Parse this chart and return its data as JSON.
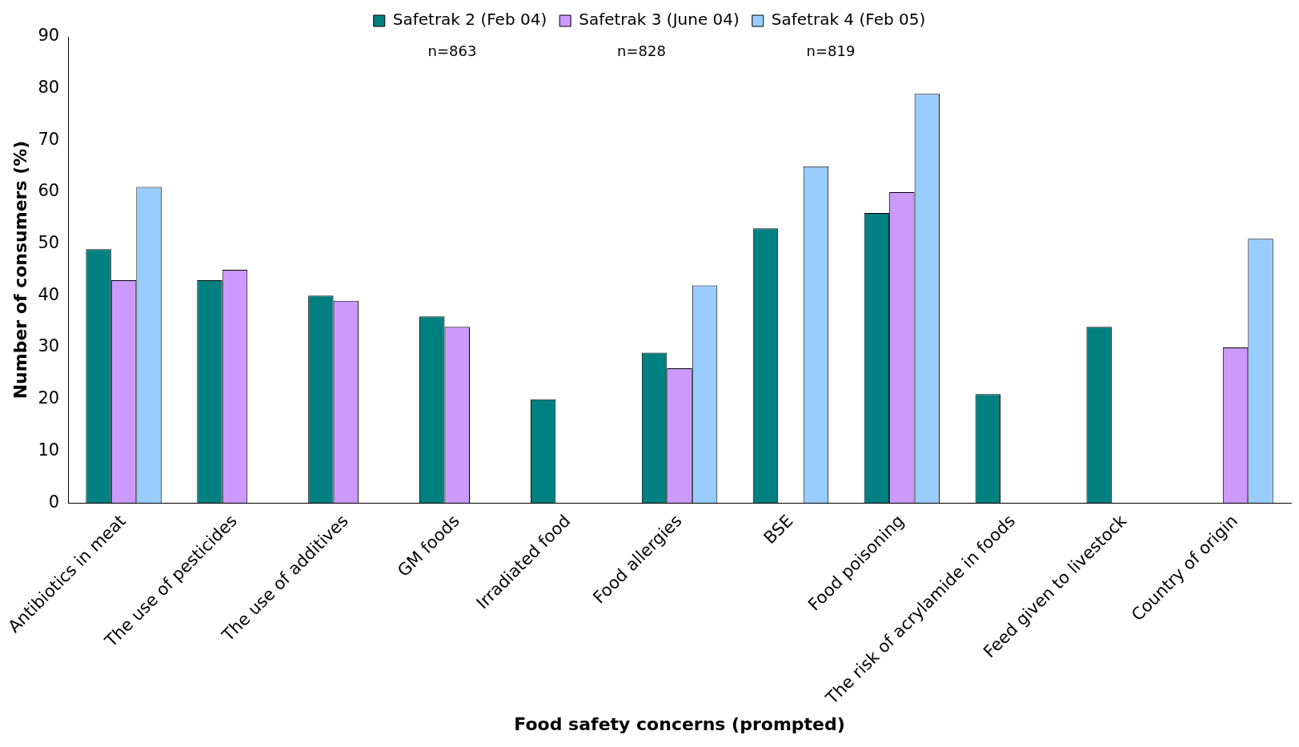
{
  "chart_data": {
    "type": "bar",
    "xlabel": "Food safety concerns (prompted)",
    "ylabel": "Number of consumers (%)",
    "categories": [
      "Antibiotics in meat",
      "The use of pesticides",
      "The use of additives",
      "GM foods",
      "Irradiated food",
      "Food allergies",
      "BSE",
      "Food poisoning",
      "The risk of acrylamide in foods",
      "Feed given to livestock",
      "Country of origin"
    ],
    "series": [
      {
        "name": "Safetrak 2 (Feb 04)",
        "color": "#008080",
        "values": [
          49,
          43,
          40,
          36,
          20,
          29,
          53,
          56,
          21,
          34,
          null
        ]
      },
      {
        "name": "Safetrak 3 (June 04)",
        "color": "#cc99ff",
        "values": [
          43,
          45,
          39,
          34,
          null,
          26,
          null,
          60,
          null,
          null,
          30
        ]
      },
      {
        "name": "Safetrak 4 (Feb 05)",
        "color": "#99ccff",
        "values": [
          61,
          null,
          null,
          null,
          null,
          42,
          65,
          79,
          null,
          null,
          51
        ]
      }
    ],
    "annotations": [
      "n=863",
      "n=828",
      "n=819"
    ],
    "ylim": [
      0,
      90
    ],
    "yticks": [
      0,
      10,
      20,
      30,
      40,
      50,
      60,
      70,
      80,
      90
    ],
    "grid": false,
    "legend": "top"
  }
}
